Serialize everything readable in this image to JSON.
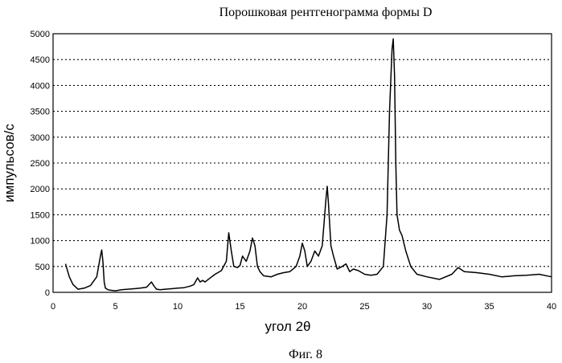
{
  "chart_data": {
    "type": "line",
    "title": "Порошковая рентгенограмма формы D",
    "caption": "Фиг. 8",
    "xlabel": "угол 2θ",
    "ylabel": "импульсов/с",
    "xlim": [
      0,
      40
    ],
    "ylim": [
      0,
      5000
    ],
    "xticks": [
      "0",
      "5",
      "10",
      "15",
      "20",
      "25",
      "30",
      "35",
      "40"
    ],
    "yticks": [
      "0",
      "500",
      "1000",
      "1500",
      "2000",
      "2500",
      "3000",
      "3500",
      "4000",
      "4500",
      "5000"
    ],
    "grid": "horizontal-dotted",
    "series": [
      {
        "color": "#000000",
        "x": [
          1.0,
          1.3,
          1.6,
          2.0,
          2.5,
          3.0,
          3.5,
          3.8,
          3.9,
          4.0,
          4.1,
          4.2,
          4.4,
          4.6,
          5.0,
          5.5,
          6.0,
          6.5,
          7.0,
          7.5,
          7.9,
          8.1,
          8.3,
          8.6,
          9.0,
          9.5,
          10.0,
          10.5,
          11.0,
          11.3,
          11.6,
          11.8,
          12.0,
          12.2,
          12.5,
          13.0,
          13.5,
          13.9,
          14.1,
          14.3,
          14.5,
          14.8,
          15.0,
          15.2,
          15.5,
          15.8,
          16.0,
          16.2,
          16.4,
          16.6,
          16.9,
          17.5,
          18.0,
          18.5,
          19.0,
          19.5,
          19.8,
          20.0,
          20.2,
          20.4,
          20.7,
          21.0,
          21.3,
          21.6,
          21.9,
          22.0,
          22.1,
          22.3,
          22.5,
          22.8,
          23.2,
          23.5,
          23.8,
          24.1,
          24.5,
          25.0,
          25.5,
          26.0,
          26.5,
          26.8,
          27.0,
          27.2,
          27.3,
          27.4,
          27.5,
          27.6,
          27.8,
          28.0,
          28.3,
          28.7,
          29.2,
          30.0,
          31.0,
          32.0,
          32.5,
          33.0,
          34.0,
          35.0,
          36.0,
          37.0,
          38.0,
          39.0,
          40.0
        ],
        "y": [
          550,
          300,
          150,
          60,
          80,
          130,
          300,
          700,
          820,
          600,
          200,
          80,
          50,
          40,
          30,
          50,
          60,
          70,
          80,
          100,
          200,
          120,
          60,
          50,
          60,
          70,
          80,
          90,
          120,
          150,
          280,
          200,
          230,
          200,
          260,
          350,
          420,
          600,
          1150,
          800,
          500,
          480,
          520,
          700,
          600,
          800,
          1050,
          900,
          500,
          400,
          320,
          300,
          350,
          380,
          400,
          500,
          700,
          950,
          800,
          500,
          600,
          800,
          700,
          900,
          1800,
          2050,
          1700,
          900,
          700,
          450,
          500,
          550,
          400,
          450,
          420,
          350,
          330,
          350,
          500,
          1500,
          3500,
          4700,
          4900,
          4200,
          2500,
          1500,
          1200,
          1100,
          800,
          500,
          350,
          300,
          250,
          350,
          480,
          400,
          380,
          350,
          300,
          320,
          330,
          350,
          300
        ]
      }
    ]
  }
}
